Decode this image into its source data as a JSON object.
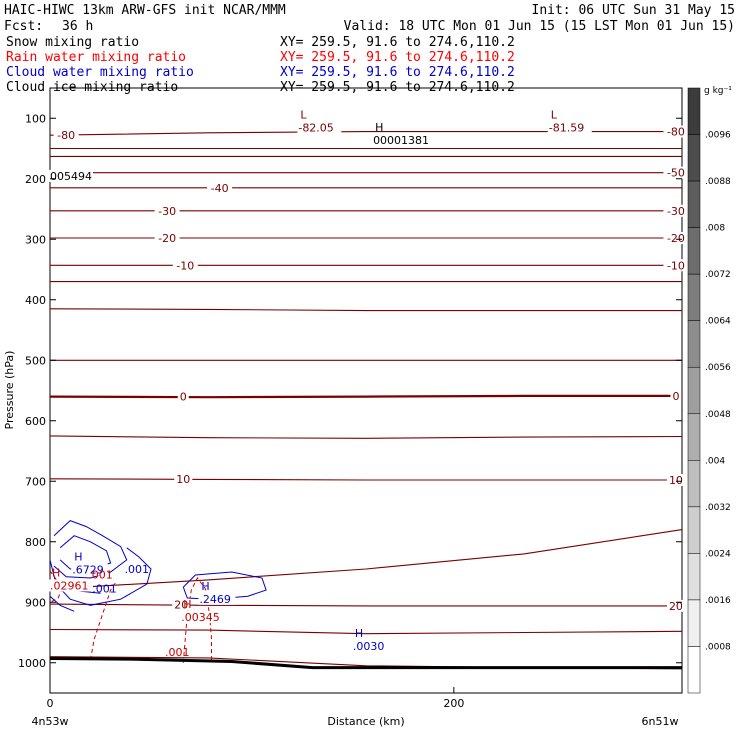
{
  "header": {
    "left_line1": "HAIC-HIWC 13km ARW-GFS init   NCAR/MMM",
    "fcst_label": "Fcst:",
    "fcst_value": "36 h",
    "init": "Init: 06 UTC Sun 31 May 15",
    "valid": "Valid: 18 UTC Mon 01 Jun 15 (15 LST Mon 01 Jun 15)"
  },
  "fields": [
    {
      "name": "Snow mixing ratio",
      "xy": "XY= 259.5, 91.6 to 274.6,110.2",
      "color": "#000000"
    },
    {
      "name": "Rain water mixing ratio",
      "xy": "XY= 259.5, 91.6 to 274.6,110.2",
      "color": "#ff0000"
    },
    {
      "name": "Cloud water mixing ratio",
      "xy": "XY= 259.5, 91.6 to 274.6,110.2",
      "color": "#0000cc"
    },
    {
      "name": "Cloud ice mixing ratio",
      "xy": "XY= 259.5, 91.6 to 274.6,110.2",
      "color": "#000000"
    }
  ],
  "chart_data": {
    "type": "contour cross-section",
    "xlabel": "Distance (km)",
    "ylabel": "Pressure (hPa)",
    "x_ticks": [
      0,
      200
    ],
    "x_range": [
      0,
      313
    ],
    "y_ticks": [
      100,
      200,
      300,
      400,
      500,
      600,
      700,
      800,
      900,
      1000
    ],
    "y_range": [
      50,
      1050
    ],
    "x_endpoint_left": "4n53w",
    "x_endpoint_right": "6n51w",
    "temperature_color": "#7a0000",
    "temperature_contours": [
      {
        "value": -80,
        "p": [
          128,
          124,
          122,
          122,
          122
        ]
      },
      {
        "value": null,
        "p": [
          150,
          150,
          150,
          150,
          150
        ]
      },
      {
        "value": null,
        "p": [
          163,
          163,
          163,
          163,
          163
        ]
      },
      {
        "value": -50,
        "p": [
          190,
          190,
          190,
          190,
          190
        ]
      },
      {
        "value": -40,
        "p": [
          215,
          215,
          215,
          215,
          215
        ]
      },
      {
        "value": -30,
        "p": [
          253,
          253,
          253,
          253,
          253
        ]
      },
      {
        "value": -20,
        "p": [
          298,
          298,
          298,
          298,
          298
        ]
      },
      {
        "value": -10,
        "p": [
          343,
          343,
          343,
          343,
          343
        ]
      },
      {
        "value": null,
        "p": [
          370,
          370,
          370,
          370,
          370
        ]
      },
      {
        "value": null,
        "p": [
          415,
          416,
          418,
          418,
          418
        ]
      },
      {
        "value": null,
        "p": [
          500,
          500,
          500,
          500,
          500
        ]
      },
      {
        "value": 0,
        "p": [
          560,
          561,
          560,
          559,
          559
        ]
      },
      {
        "value": null,
        "p": [
          625,
          628,
          629,
          627,
          626
        ]
      },
      {
        "value": 10,
        "p": [
          696,
          697,
          698,
          698,
          698
        ]
      },
      {
        "value": null,
        "p": [
          878,
          863,
          845,
          820,
          780
        ]
      },
      {
        "value": 20,
        "p": [
          903,
          905,
          906,
          906,
          906
        ]
      },
      {
        "value": null,
        "p": [
          945,
          946,
          952,
          950,
          948
        ]
      },
      {
        "value": null,
        "p": [
          990,
          992,
          1005,
          1008,
          1010
        ]
      }
    ],
    "temperature_labels": [
      {
        "text": "-80",
        "x": 8,
        "p": 128
      },
      {
        "text": "-80",
        "x": 310,
        "p": 122
      },
      {
        "text": "-50",
        "x": 310,
        "p": 190
      },
      {
        "text": "-40",
        "x": 84,
        "p": 215
      },
      {
        "text": "-30",
        "x": 58,
        "p": 253
      },
      {
        "text": "-30",
        "x": 310,
        "p": 253
      },
      {
        "text": "-20",
        "x": 58,
        "p": 298
      },
      {
        "text": "-20",
        "x": 310,
        "p": 298
      },
      {
        "text": "-10",
        "x": 67,
        "p": 343
      },
      {
        "text": "-10",
        "x": 310,
        "p": 343
      },
      {
        "text": "0",
        "x": 66,
        "p": 560
      },
      {
        "text": "0",
        "x": 310,
        "p": 559
      },
      {
        "text": "10",
        "x": 66,
        "p": 696
      },
      {
        "text": "10",
        "x": 310,
        "p": 698
      },
      {
        "text": "20",
        "x": 65,
        "p": 904
      },
      {
        "text": "20",
        "x": 310,
        "p": 906
      }
    ],
    "extrema": [
      {
        "kind": "L",
        "value": "-82.05",
        "x": 123,
        "p": 107,
        "color": "#7a0000"
      },
      {
        "kind": "L",
        "value": "-81.59",
        "x": 247,
        "p": 107,
        "color": "#7a0000"
      },
      {
        "kind": "H",
        "value": "00001381",
        "x": 160,
        "p": 128,
        "color": "#000000"
      },
      {
        "kind": "",
        "value": "005494",
        "x": 0,
        "p": 187,
        "color": "#000000"
      },
      {
        "kind": "H",
        "value": ".6729",
        "x": 11,
        "p": 838,
        "color": "#0000cc"
      },
      {
        "kind": "H",
        "value": ".2469",
        "x": 74,
        "p": 886,
        "color": "#0000cc"
      },
      {
        "kind": "H",
        "value": ".0030",
        "x": 150,
        "p": 964,
        "color": "#0000cc"
      },
      {
        "kind": "H",
        "value": ".02961",
        "x": 0,
        "p": 864,
        "color": "#cc0000"
      },
      {
        "kind": "H",
        "value": ".00345",
        "x": 65,
        "p": 916,
        "color": "#cc0000"
      }
    ],
    "contour_labels": [
      {
        "text": ".001",
        "x": 25,
        "p": 854,
        "color": "#cc0000"
      },
      {
        "text": ".001",
        "x": 43,
        "p": 845,
        "color": "#0000cc"
      },
      {
        "text": ".001",
        "x": 27,
        "p": 877,
        "color": "#0000cc"
      },
      {
        "text": ".001",
        "x": 63,
        "p": 982,
        "color": "#cc0000"
      }
    ],
    "colorbar": {
      "unit": "g kg⁻¹",
      "labels": [
        ".0096",
        ".0088",
        ".008",
        ".0072",
        ".0064",
        ".0056",
        ".0048",
        ".004",
        ".0032",
        ".0024",
        ".0016",
        ".0008"
      ]
    }
  }
}
